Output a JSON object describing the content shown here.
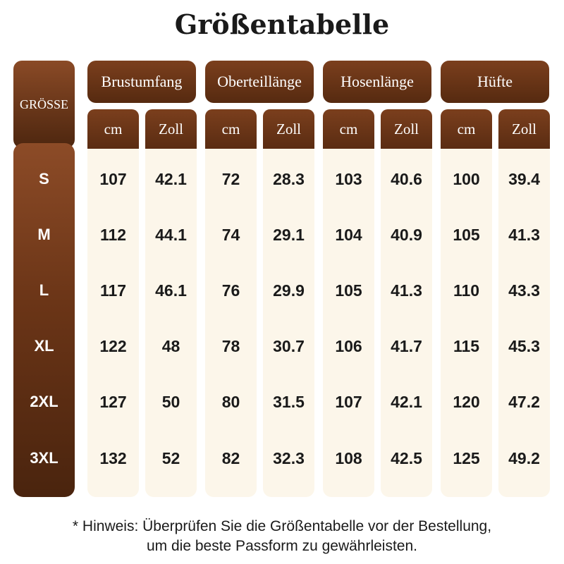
{
  "title": "Größentabelle",
  "size_header": "GRÖSSE",
  "sizes": [
    "S",
    "M",
    "L",
    "XL",
    "2XL",
    "3XL"
  ],
  "groups": [
    {
      "label": "Brustumfang",
      "units": [
        "cm",
        "Zoll"
      ]
    },
    {
      "label": "Oberteillänge",
      "units": [
        "cm",
        "Zoll"
      ]
    },
    {
      "label": "Hosenlänge",
      "units": [
        "cm",
        "Zoll"
      ]
    },
    {
      "label": "Hüfte",
      "units": [
        "cm",
        "Zoll"
      ]
    }
  ],
  "rows": [
    [
      "107",
      "42.1",
      "72",
      "28.3",
      "103",
      "40.6",
      "100",
      "39.4"
    ],
    [
      "112",
      "44.1",
      "74",
      "29.1",
      "104",
      "40.9",
      "105",
      "41.3"
    ],
    [
      "117",
      "46.1",
      "76",
      "29.9",
      "105",
      "41.3",
      "110",
      "43.3"
    ],
    [
      "122",
      "48",
      "78",
      "30.7",
      "106",
      "41.7",
      "115",
      "45.3"
    ],
    [
      "127",
      "50",
      "80",
      "31.5",
      "107",
      "42.1",
      "120",
      "47.2"
    ],
    [
      "132",
      "52",
      "82",
      "32.3",
      "108",
      "42.5",
      "125",
      "49.2"
    ]
  ],
  "note": {
    "line1": "* Hinweis: Überprüfen Sie die Größentabelle vor der Bestellung,",
    "line2": "um die beste Passform zu gewährleisten."
  },
  "colors": {
    "header_brown": "#6b3517",
    "cell_cream": "#fcf6ea"
  }
}
